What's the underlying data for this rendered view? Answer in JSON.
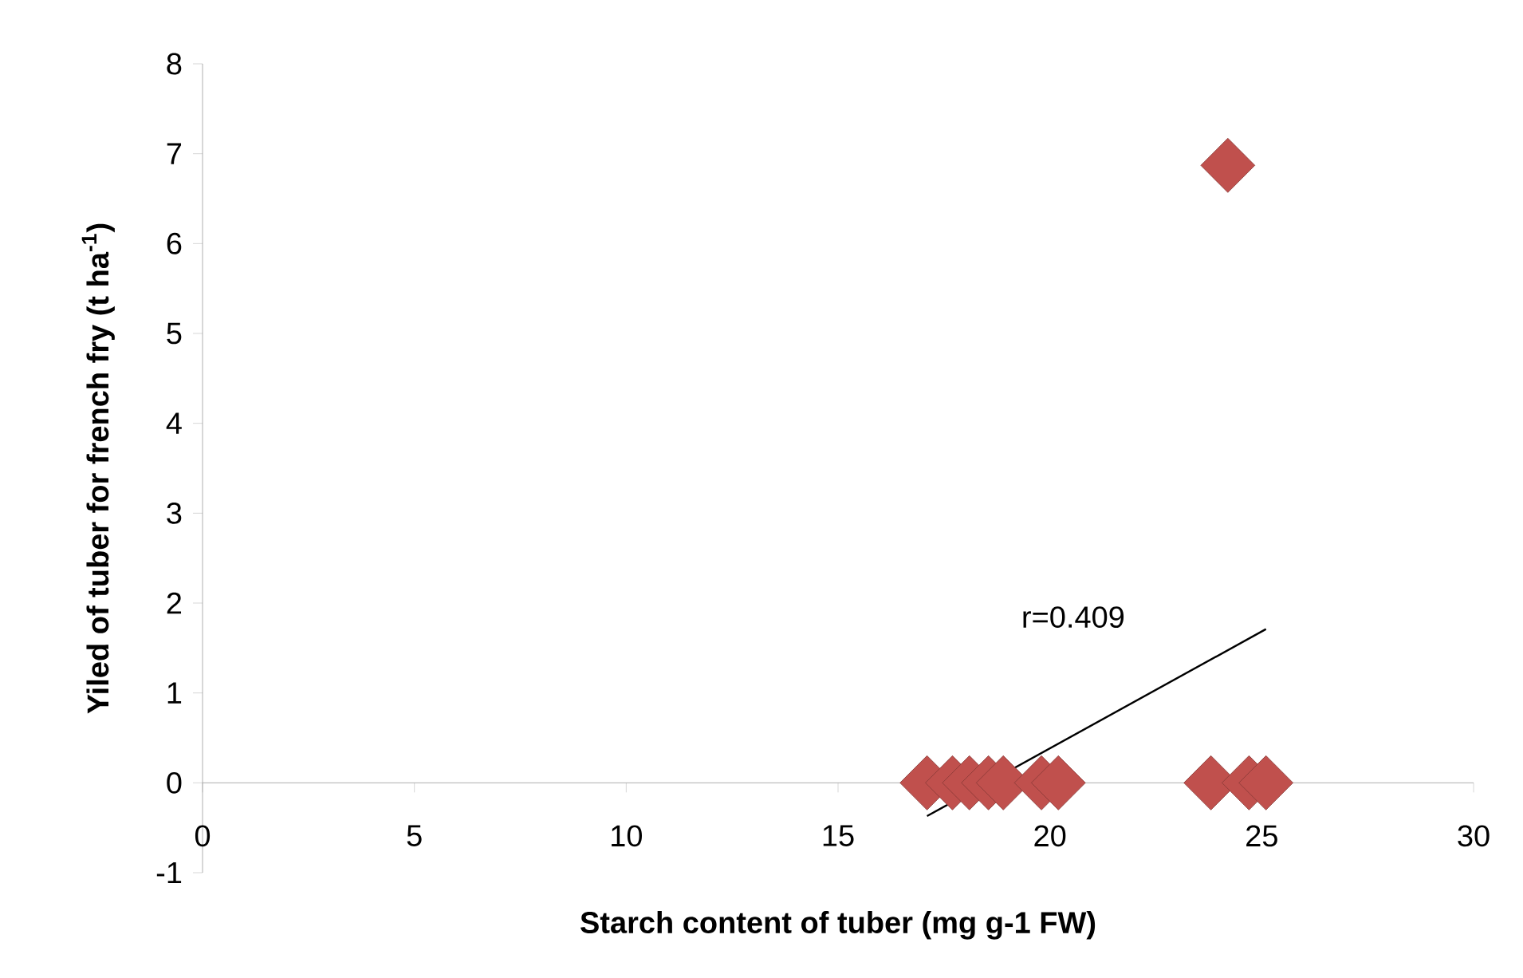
{
  "chart_data": {
    "type": "scatter",
    "xlabel": "Starch content of tuber (mg  g-1 FW)",
    "ylabel": "Yiled of tuber for french fry (t ha$^{-1}$)",
    "xlim": [
      0,
      30
    ],
    "ylim": [
      -1,
      8
    ],
    "xticks": [
      0,
      5,
      10,
      15,
      20,
      25,
      30
    ],
    "yticks": [
      -1,
      0,
      1,
      2,
      3,
      4,
      5,
      6,
      7,
      8
    ],
    "grid": false,
    "series": [
      {
        "color": "#c0504d",
        "marker": "diamond",
        "x": [
          17.1,
          17.7,
          18.1,
          18.55,
          18.9,
          19.8,
          20.2,
          23.8,
          24.2,
          24.7,
          25.1
        ],
        "values": [
          0,
          0,
          0,
          0,
          0,
          0,
          0,
          0,
          6.87,
          0,
          0
        ]
      },
      {
        "type": "line",
        "color": "#000000",
        "x": [
          17.1,
          25.1
        ],
        "values": [
          -0.37,
          1.71
        ]
      }
    ],
    "annotations": [
      "r=0.409"
    ]
  }
}
